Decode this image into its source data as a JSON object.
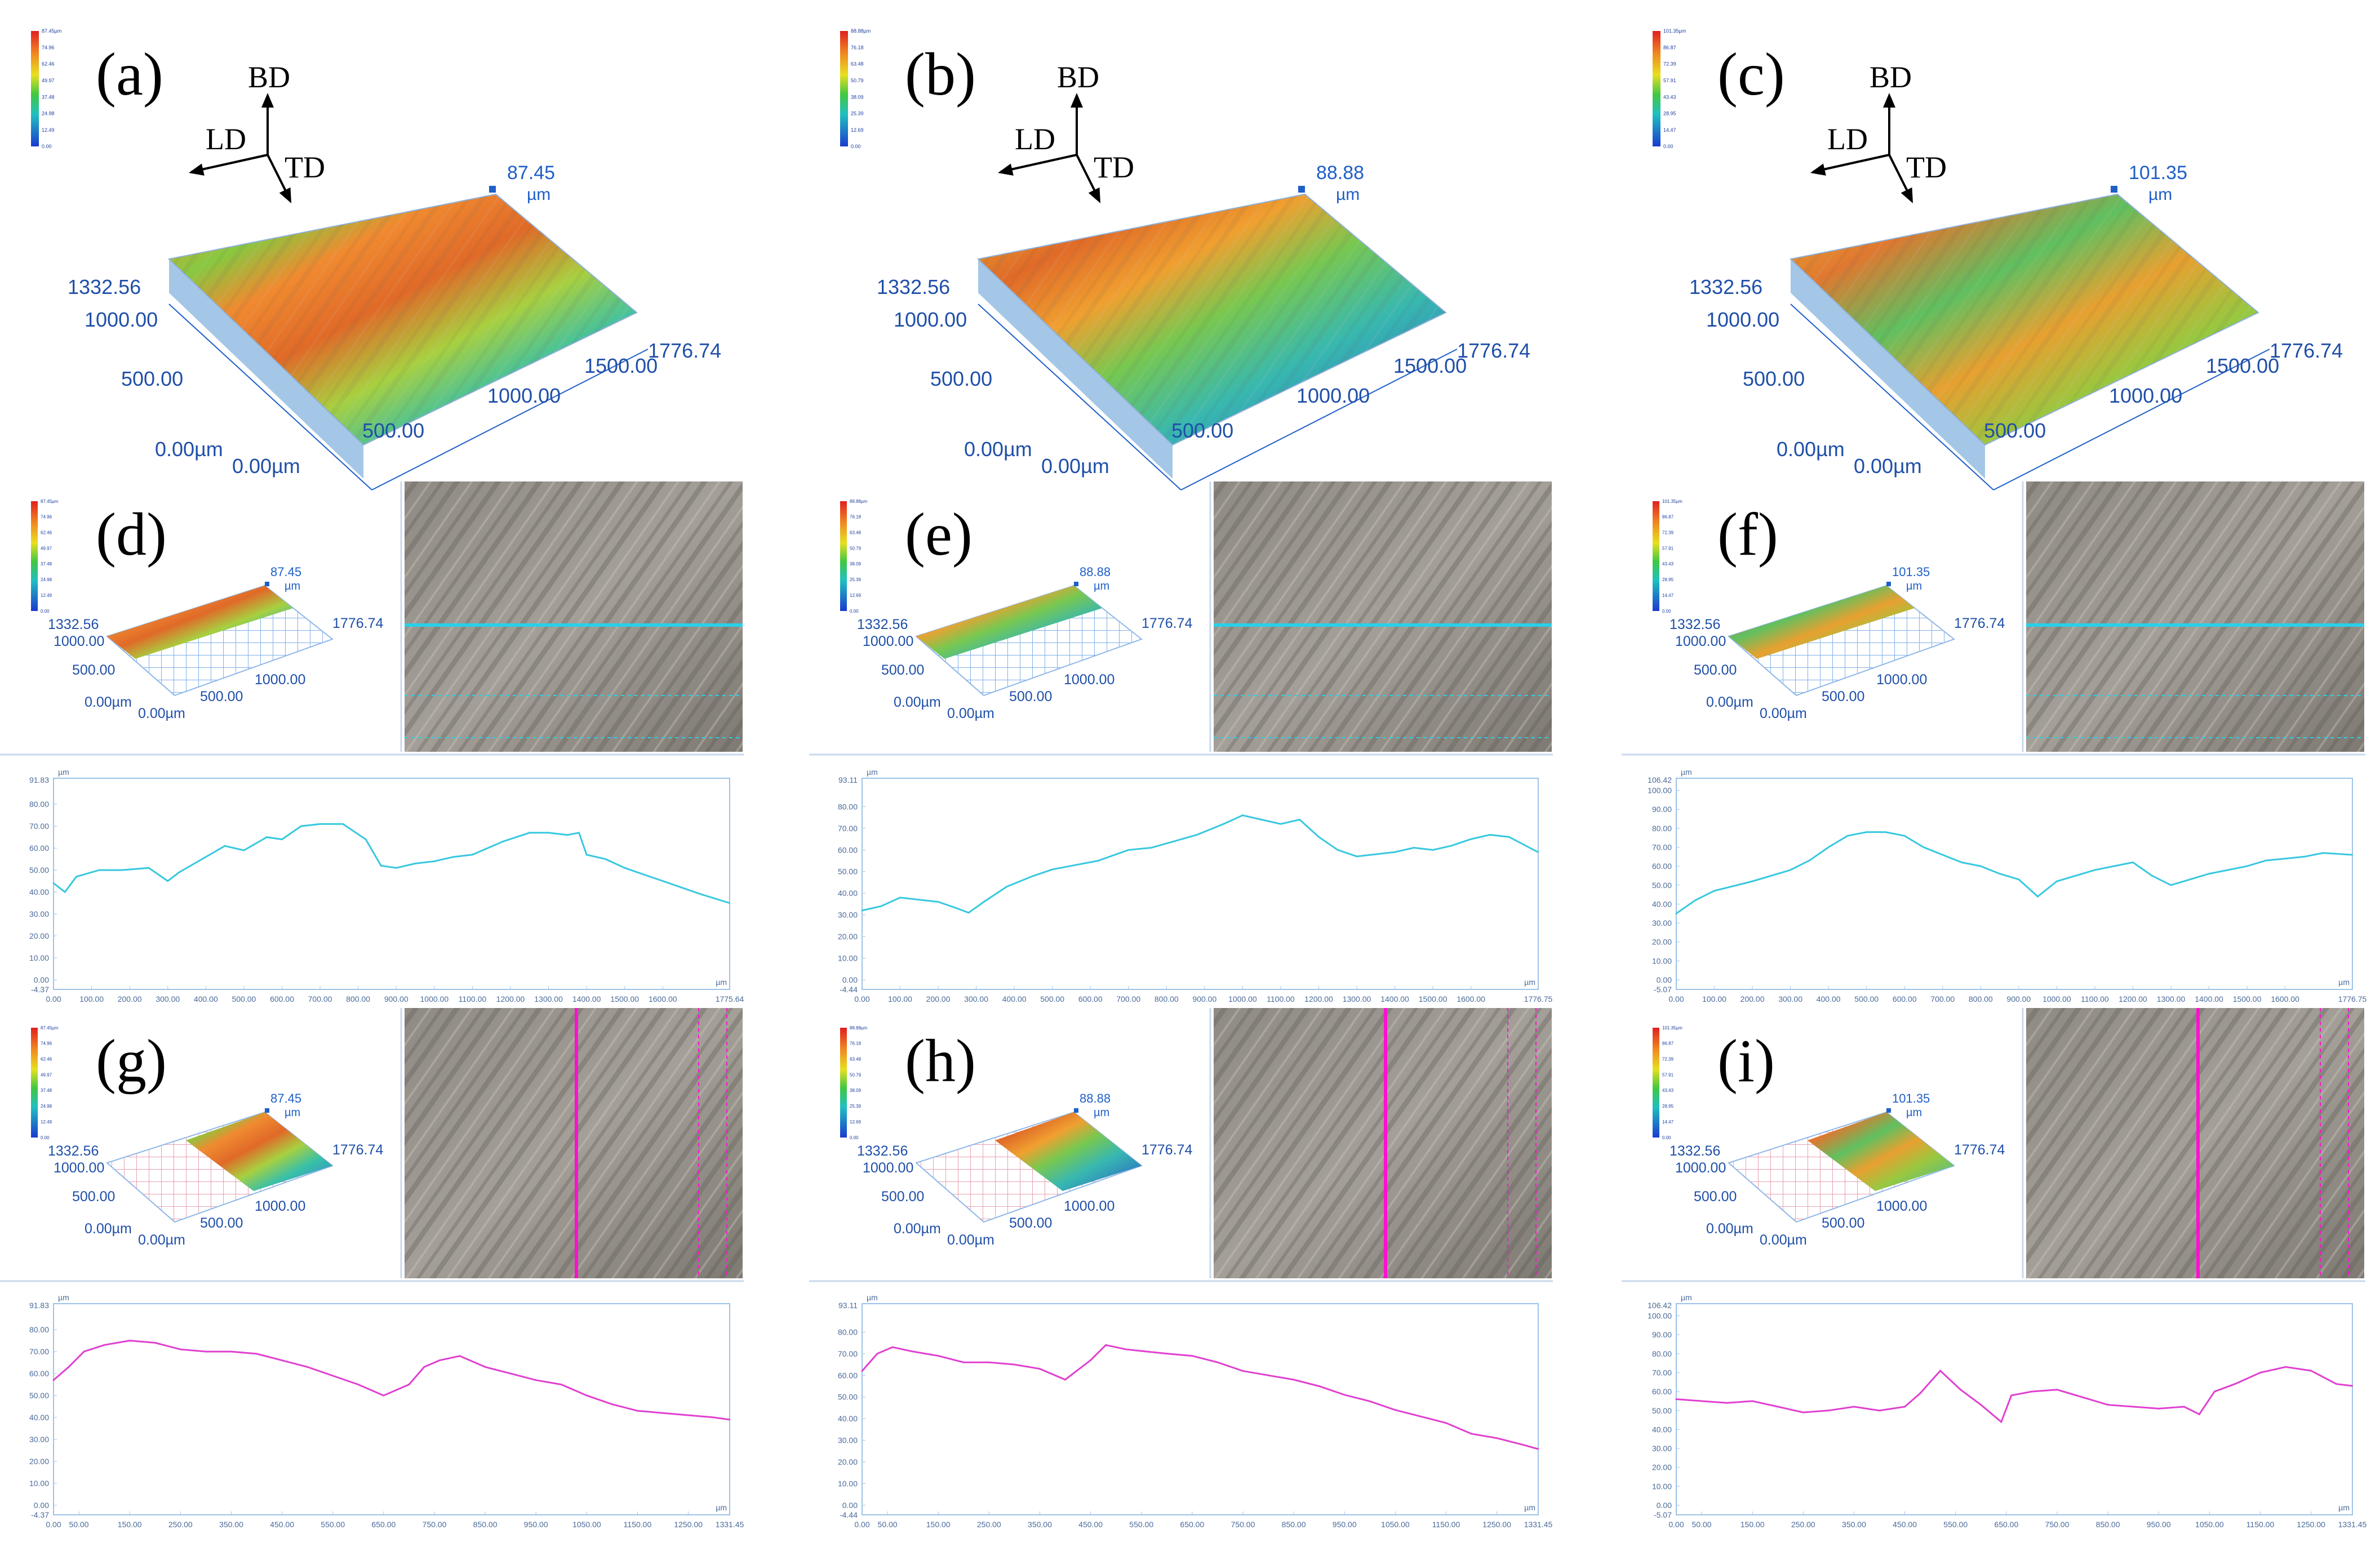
{
  "figure": {
    "axes_directions": {
      "bd": "BD",
      "ld": "LD",
      "td": "TD"
    },
    "colors": {
      "axis_blue": "#1f5fc8",
      "profile_cyan": "#38c8e0",
      "profile_magenta": "#e040d0",
      "frame_blue": "#9cc4e8",
      "scan_line_cyan": "#29d0e8",
      "scan_line_magenta": "#ff10d0"
    },
    "top_panels": [
      {
        "label": "(a)",
        "height_max": "87.45",
        "height_unit": "µm",
        "y_max": "1332.56",
        "x_max": "1776.74",
        "y_ticks": [
          "1000.00",
          "500.00",
          "0.00µm"
        ],
        "x_ticks": [
          "0.00µm",
          "500.00",
          "1000.00",
          "1500.00"
        ],
        "colorbar": [
          "87.45µm",
          "74.96",
          "62.46",
          "49.97",
          "37.48",
          "24.98",
          "12.49",
          "0.00"
        ]
      },
      {
        "label": "(b)",
        "height_max": "88.88",
        "height_unit": "µm",
        "y_max": "1332.56",
        "x_max": "1776.74",
        "y_ticks": [
          "1000.00",
          "500.00",
          "0.00µm"
        ],
        "x_ticks": [
          "0.00µm",
          "500.00",
          "1000.00",
          "1500.00"
        ],
        "colorbar": [
          "88.88µm",
          "76.18",
          "63.48",
          "50.79",
          "38.09",
          "25.39",
          "12.69",
          "0.00"
        ]
      },
      {
        "label": "(c)",
        "height_max": "101.35",
        "height_unit": "µm",
        "y_max": "1332.56",
        "x_max": "1776.74",
        "y_ticks": [
          "1000.00",
          "500.00",
          "0.00µm"
        ],
        "x_ticks": [
          "0.00µm",
          "500.00",
          "1000.00",
          "1500.00"
        ],
        "colorbar": [
          "101.35µm",
          "86.87",
          "72.39",
          "57.91",
          "43.43",
          "28.95",
          "14.47",
          "0.00"
        ]
      }
    ],
    "small_panels": [
      {
        "label": "(d)",
        "height_max": "87.45",
        "unit": "µm",
        "y_max": "1332.56",
        "x_max": "1776.74",
        "y_ticks": [
          "1000.00",
          "500.00",
          "0.00µm"
        ],
        "x_ticks": [
          "0.00µm",
          "500.00",
          "1000.00"
        ],
        "colorbar": [
          "87.45µm",
          "74.96",
          "62.46",
          "49.97",
          "37.48",
          "24.98",
          "12.49",
          "0.00"
        ]
      },
      {
        "label": "(e)",
        "height_max": "88.88",
        "unit": "µm",
        "y_max": "1332.56",
        "x_max": "1776.74",
        "y_ticks": [
          "1000.00",
          "500.00",
          "0.00µm"
        ],
        "x_ticks": [
          "0.00µm",
          "500.00",
          "1000.00"
        ],
        "colorbar": [
          "88.88µm",
          "76.18",
          "63.48",
          "50.79",
          "38.09",
          "25.39",
          "12.69",
          "0.00"
        ]
      },
      {
        "label": "(f)",
        "height_max": "101.35",
        "unit": "µm",
        "y_max": "1332.56",
        "x_max": "1776.74",
        "y_ticks": [
          "1000.00",
          "500.00",
          "0.00µm"
        ],
        "x_ticks": [
          "0.00µm",
          "500.00",
          "1000.00"
        ],
        "colorbar": [
          "101.35µm",
          "86.87",
          "72.39",
          "57.91",
          "43.43",
          "28.95",
          "14.47",
          "0.00"
        ]
      },
      {
        "label": "(g)",
        "height_max": "87.45",
        "unit": "µm",
        "y_max": "1332.56",
        "x_max": "1776.74",
        "y_ticks": [
          "1000.00",
          "500.00",
          "0.00µm"
        ],
        "x_ticks": [
          "0.00µm",
          "500.00",
          "1000.00"
        ],
        "colorbar": [
          "87.45µm",
          "74.96",
          "62.46",
          "49.97",
          "37.48",
          "24.98",
          "12.49",
          "0.00"
        ]
      },
      {
        "label": "(h)",
        "height_max": "88.88",
        "unit": "µm",
        "y_max": "1332.56",
        "x_max": "1776.74",
        "y_ticks": [
          "1000.00",
          "500.00",
          "0.00µm"
        ],
        "x_ticks": [
          "0.00µm",
          "500.00",
          "1000.00"
        ],
        "colorbar": [
          "88.88µm",
          "76.18",
          "63.48",
          "50.79",
          "38.09",
          "25.39",
          "12.69",
          "0.00"
        ]
      },
      {
        "label": "(i)",
        "height_max": "101.35",
        "unit": "µm",
        "y_max": "1332.56",
        "x_max": "1776.74",
        "y_ticks": [
          "1000.00",
          "500.00",
          "0.00µm"
        ],
        "x_ticks": [
          "0.00µm",
          "500.00",
          "1000.00"
        ],
        "colorbar": [
          "101.35µm",
          "86.87",
          "72.39",
          "57.91",
          "43.43",
          "28.95",
          "14.47",
          "0.00"
        ]
      }
    ]
  },
  "chart_data": [
    {
      "type": "line",
      "name": "profile-d",
      "color": "cyan",
      "title": "",
      "ylabel": "µm",
      "xlabel": "µm",
      "ylim": [
        -4.37,
        91.83
      ],
      "y_top_label": "91.83",
      "y_bottom_label": "-4.37",
      "y_ticks": [
        "80.00",
        "70.00",
        "60.00",
        "50.00",
        "40.00",
        "30.00",
        "20.00",
        "10.00",
        "0.00"
      ],
      "xlim": [
        0,
        1775.64
      ],
      "x_end_label": "1775.64",
      "x_ticks": [
        "0.00",
        "100.00",
        "200.00",
        "300.00",
        "400.00",
        "500.00",
        "600.00",
        "700.00",
        "800.00",
        "900.00",
        "1000.00",
        "1100.00",
        "1200.00",
        "1300.00",
        "1400.00",
        "1500.00",
        "1600.00"
      ],
      "x": [
        0,
        30,
        60,
        120,
        180,
        250,
        300,
        330,
        380,
        450,
        500,
        560,
        600,
        650,
        700,
        760,
        820,
        860,
        900,
        950,
        1000,
        1050,
        1100,
        1180,
        1250,
        1300,
        1350,
        1380,
        1400,
        1450,
        1500,
        1550,
        1600,
        1650,
        1700,
        1775
      ],
      "values": [
        44,
        40,
        47,
        50,
        50,
        51,
        45,
        49,
        54,
        61,
        59,
        65,
        64,
        70,
        71,
        71,
        64,
        52,
        51,
        53,
        54,
        56,
        57,
        63,
        67,
        67,
        66,
        67,
        57,
        55,
        51,
        48,
        45,
        42,
        39,
        35
      ]
    },
    {
      "type": "line",
      "name": "profile-e",
      "color": "cyan",
      "title": "",
      "ylabel": "µm",
      "xlabel": "µm",
      "ylim": [
        -4.44,
        93.11
      ],
      "y_top_label": "93.11",
      "y_bottom_label": "-4.44",
      "y_ticks": [
        "80.00",
        "70.00",
        "60.00",
        "50.00",
        "40.00",
        "30.00",
        "20.00",
        "10.00",
        "0.00"
      ],
      "xlim": [
        0,
        1776.75
      ],
      "x_end_label": "1776.75",
      "x_ticks": [
        "0.00",
        "100.00",
        "200.00",
        "300.00",
        "400.00",
        "500.00",
        "600.00",
        "700.00",
        "800.00",
        "900.00",
        "1000.00",
        "1100.00",
        "1200.00",
        "1300.00",
        "1400.00",
        "1500.00",
        "1600.00"
      ],
      "x": [
        0,
        50,
        100,
        150,
        200,
        250,
        280,
        320,
        380,
        450,
        500,
        560,
        620,
        700,
        760,
        820,
        880,
        950,
        1000,
        1050,
        1100,
        1150,
        1200,
        1250,
        1300,
        1350,
        1400,
        1450,
        1500,
        1550,
        1600,
        1650,
        1700,
        1776
      ],
      "values": [
        32,
        34,
        38,
        37,
        36,
        33,
        31,
        36,
        43,
        48,
        51,
        53,
        55,
        60,
        61,
        64,
        67,
        72,
        76,
        74,
        72,
        74,
        66,
        60,
        57,
        58,
        59,
        61,
        60,
        62,
        65,
        67,
        66,
        59
      ]
    },
    {
      "type": "line",
      "name": "profile-f",
      "color": "cyan",
      "title": "",
      "ylabel": "µm",
      "xlabel": "µm",
      "ylim": [
        -5.07,
        106.42
      ],
      "y_top_label": "106.42",
      "y_bottom_label": "-5.07",
      "y_ticks": [
        "100.00",
        "90.00",
        "80.00",
        "70.00",
        "60.00",
        "50.00",
        "40.00",
        "30.00",
        "20.00",
        "10.00",
        "0.00"
      ],
      "xlim": [
        0,
        1776.75
      ],
      "x_end_label": "1776.75",
      "x_ticks": [
        "0.00",
        "100.00",
        "200.00",
        "300.00",
        "400.00",
        "500.00",
        "600.00",
        "700.00",
        "800.00",
        "900.00",
        "1000.00",
        "1100.00",
        "1200.00",
        "1300.00",
        "1400.00",
        "1500.00",
        "1600.00"
      ],
      "x": [
        0,
        50,
        100,
        200,
        250,
        300,
        350,
        400,
        450,
        500,
        550,
        600,
        650,
        700,
        750,
        800,
        850,
        900,
        950,
        1000,
        1050,
        1100,
        1150,
        1200,
        1250,
        1300,
        1350,
        1400,
        1450,
        1500,
        1550,
        1600,
        1650,
        1700,
        1776
      ],
      "values": [
        35,
        42,
        47,
        52,
        55,
        58,
        63,
        70,
        76,
        78,
        78,
        76,
        70,
        66,
        62,
        60,
        56,
        53,
        44,
        52,
        55,
        58,
        60,
        62,
        55,
        50,
        53,
        56,
        58,
        60,
        63,
        64,
        65,
        67,
        66
      ]
    },
    {
      "type": "line",
      "name": "profile-g",
      "color": "magenta",
      "title": "",
      "ylabel": "µm",
      "xlabel": "µm",
      "ylim": [
        -4.37,
        91.83
      ],
      "y_top_label": "91.83",
      "y_bottom_label": "-4.37",
      "y_ticks": [
        "80.00",
        "70.00",
        "60.00",
        "50.00",
        "40.00",
        "30.00",
        "20.00",
        "10.00",
        "0.00"
      ],
      "xlim": [
        0,
        1331.45
      ],
      "x_end_label": "1331.45",
      "x_ticks": [
        "0.00",
        "50.00",
        "150.00",
        "250.00",
        "350.00",
        "450.00",
        "550.00",
        "650.00",
        "750.00",
        "850.00",
        "950.00",
        "1050.00",
        "1150.00",
        "1250.00"
      ],
      "x": [
        0,
        30,
        60,
        100,
        150,
        200,
        250,
        300,
        350,
        400,
        450,
        500,
        550,
        600,
        650,
        700,
        730,
        760,
        800,
        850,
        900,
        950,
        1000,
        1050,
        1100,
        1150,
        1200,
        1250,
        1300,
        1331
      ],
      "values": [
        57,
        63,
        70,
        73,
        75,
        74,
        71,
        70,
        70,
        69,
        66,
        63,
        59,
        55,
        50,
        55,
        63,
        66,
        68,
        63,
        60,
        57,
        55,
        50,
        46,
        43,
        42,
        41,
        40,
        39
      ]
    },
    {
      "type": "line",
      "name": "profile-h",
      "color": "magenta",
      "title": "",
      "ylabel": "µm",
      "xlabel": "µm",
      "ylim": [
        -4.44,
        93.11
      ],
      "y_top_label": "93.11",
      "y_bottom_label": "-4.44",
      "y_ticks": [
        "80.00",
        "70.00",
        "60.00",
        "50.00",
        "40.00",
        "30.00",
        "20.00",
        "10.00",
        "0.00"
      ],
      "xlim": [
        0,
        1331.45
      ],
      "x_end_label": "1331.45",
      "x_ticks": [
        "0.00",
        "50.00",
        "150.00",
        "250.00",
        "350.00",
        "450.00",
        "550.00",
        "650.00",
        "750.00",
        "850.00",
        "950.00",
        "1050.00",
        "1150.00",
        "1250.00"
      ],
      "x": [
        0,
        30,
        60,
        100,
        150,
        200,
        250,
        300,
        350,
        400,
        450,
        480,
        520,
        560,
        600,
        650,
        700,
        750,
        800,
        850,
        900,
        950,
        1000,
        1050,
        1100,
        1150,
        1200,
        1250,
        1300,
        1331
      ],
      "values": [
        62,
        70,
        73,
        71,
        69,
        66,
        66,
        65,
        63,
        58,
        67,
        74,
        72,
        71,
        70,
        69,
        66,
        62,
        60,
        58,
        55,
        51,
        48,
        44,
        41,
        38,
        33,
        31,
        28,
        26
      ]
    },
    {
      "type": "line",
      "name": "profile-i",
      "color": "magenta",
      "title": "",
      "ylabel": "µm",
      "xlabel": "µm",
      "ylim": [
        -5.07,
        106.42
      ],
      "y_top_label": "106.42",
      "y_bottom_label": "-5.07",
      "y_ticks": [
        "100.00",
        "90.00",
        "80.00",
        "70.00",
        "60.00",
        "50.00",
        "40.00",
        "30.00",
        "20.00",
        "10.00",
        "0.00"
      ],
      "xlim": [
        0,
        1331.45
      ],
      "x_end_label": "1331.45",
      "x_ticks": [
        "0.00",
        "50.00",
        "150.00",
        "250.00",
        "350.00",
        "450.00",
        "550.00",
        "650.00",
        "750.00",
        "850.00",
        "950.00",
        "1050.00",
        "1150.00",
        "1250.00"
      ],
      "x": [
        0,
        50,
        100,
        150,
        200,
        250,
        300,
        350,
        400,
        450,
        480,
        520,
        560,
        600,
        640,
        660,
        700,
        750,
        800,
        850,
        900,
        950,
        1000,
        1030,
        1060,
        1100,
        1150,
        1200,
        1250,
        1300,
        1331
      ],
      "values": [
        56,
        55,
        54,
        55,
        52,
        49,
        50,
        52,
        50,
        52,
        59,
        71,
        61,
        53,
        44,
        58,
        60,
        61,
        57,
        53,
        52,
        51,
        52,
        48,
        60,
        64,
        70,
        73,
        71,
        64,
        63
      ]
    }
  ]
}
